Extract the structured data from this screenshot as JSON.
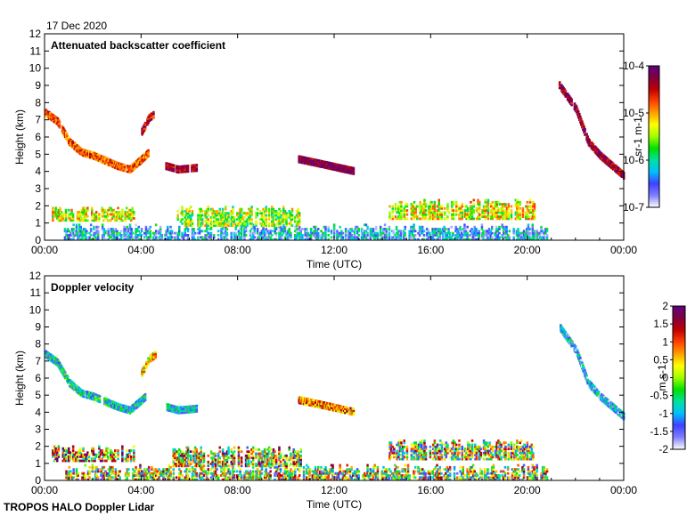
{
  "date_label": "17 Dec 2020",
  "footer": "TROPOS HALO Doppler Lidar",
  "chart_data": [
    {
      "type": "heatmap",
      "title": "Attenuated backscatter coefficient",
      "xlabel": "Time (UTC)",
      "ylabel": "Height (km)",
      "xlim": [
        0,
        24
      ],
      "ylim": [
        0,
        12
      ],
      "x_ticks": [
        0,
        4,
        8,
        12,
        16,
        20,
        24
      ],
      "x_tick_labels": [
        "00:00",
        "04:00",
        "08:00",
        "12:00",
        "16:00",
        "20:00",
        "00:00"
      ],
      "y_ticks": [
        0,
        1,
        2,
        3,
        4,
        5,
        6,
        7,
        8,
        9,
        10,
        11,
        12
      ],
      "y_tick_labels": [
        "0",
        "1",
        "2",
        "3",
        "4",
        "5",
        "6",
        "7",
        "8",
        "9",
        "10",
        "11",
        "12"
      ],
      "colorbar": {
        "scale": "log",
        "range": [
          1e-07,
          0.0001
        ],
        "tick_values": [
          -4,
          -5,
          -6,
          -7
        ],
        "tick_labels": [
          "10-4",
          "10-5",
          "10-6",
          "10-7"
        ],
        "label": "sr-1 m-1",
        "colormap": [
          "#ffffff",
          "#8080ff",
          "#4040ff",
          "#00c0ff",
          "#00e0a0",
          "#00e000",
          "#a0ff00",
          "#ffff00",
          "#ffa000",
          "#ff4000",
          "#c00000",
          "#800040",
          "#600080"
        ]
      },
      "features": [
        {
          "name": "boundary-layer-aerosol",
          "t": [
            0.8,
            20.8
          ],
          "z": [
            0,
            0.9
          ],
          "value": -6.3
        },
        {
          "name": "low-cloud-1",
          "t": [
            0.3,
            3.7
          ],
          "z": [
            1.1,
            2.0
          ],
          "value": -5.3
        },
        {
          "name": "low-cloud-2",
          "t": [
            5.3,
            10.6
          ],
          "z": [
            0.8,
            2.0
          ],
          "value": -5.5
        },
        {
          "name": "low-cloud-3",
          "t": [
            14.2,
            20.3
          ],
          "z": [
            1.2,
            2.4
          ],
          "value": -5.3
        },
        {
          "name": "mid-cloud-layer",
          "t": [
            0.0,
            4.4
          ],
          "points": [
            [
              0.0,
              7.3
            ],
            [
              0.5,
              6.8
            ],
            [
              1.0,
              5.6
            ],
            [
              1.5,
              5.0
            ],
            [
              2.0,
              4.8
            ],
            [
              3.0,
              4.2
            ],
            [
              3.5,
              4.0
            ],
            [
              4.0,
              4.6
            ],
            [
              4.3,
              5.0
            ]
          ],
          "value": -4.8
        },
        {
          "name": "mid-cloud-upper",
          "t": [
            4.0,
            4.6
          ],
          "points": [
            [
              4.0,
              6.2
            ],
            [
              4.3,
              7.0
            ],
            [
              4.6,
              7.3
            ]
          ],
          "value": -4.5
        },
        {
          "name": "mid-cloud-2",
          "t": [
            5.0,
            6.3
          ],
          "points": [
            [
              5.0,
              4.2
            ],
            [
              5.5,
              4.0
            ],
            [
              6.3,
              4.1
            ]
          ],
          "value": -4.3
        },
        {
          "name": "mid-cloud-3",
          "t": [
            10.5,
            12.8
          ],
          "points": [
            [
              10.5,
              4.6
            ],
            [
              11.5,
              4.3
            ],
            [
              12.8,
              3.9
            ]
          ],
          "value": -4.2
        },
        {
          "name": "high-cloud-evening",
          "t": [
            21.3,
            24.0
          ],
          "points": [
            [
              21.3,
              8.9
            ],
            [
              22.0,
              7.5
            ],
            [
              22.5,
              5.6
            ],
            [
              23.0,
              4.8
            ],
            [
              24.0,
              3.6
            ]
          ],
          "value": -4.3
        }
      ]
    },
    {
      "type": "heatmap",
      "title": "Doppler velocity",
      "xlabel": "Time (UTC)",
      "ylabel": "Height (km)",
      "xlim": [
        0,
        24
      ],
      "ylim": [
        0,
        12
      ],
      "x_ticks": [
        0,
        4,
        8,
        12,
        16,
        20,
        24
      ],
      "x_tick_labels": [
        "00:00",
        "04:00",
        "08:00",
        "12:00",
        "16:00",
        "20:00",
        "00:00"
      ],
      "y_ticks": [
        0,
        1,
        2,
        3,
        4,
        5,
        6,
        7,
        8,
        9,
        10,
        11,
        12
      ],
      "y_tick_labels": [
        "0",
        "1",
        "2",
        "3",
        "4",
        "5",
        "6",
        "7",
        "8",
        "9",
        "10",
        "11",
        "12"
      ],
      "colorbar": {
        "scale": "linear",
        "range": [
          -2,
          2
        ],
        "tick_values": [
          2,
          1.5,
          1,
          0.5,
          0,
          -0.5,
          -1,
          -1.5,
          -2
        ],
        "tick_labels": [
          "2",
          "1.5",
          "1",
          "0.5",
          "0",
          "-0.5",
          "-1",
          "-1.5",
          "-2"
        ],
        "label": "m s-1",
        "colormap": [
          "#ffffff",
          "#8080ff",
          "#4040ff",
          "#00c0ff",
          "#00e0a0",
          "#00e000",
          "#a0ff00",
          "#ffff00",
          "#ffa000",
          "#ff4000",
          "#c00000",
          "#800040",
          "#600080"
        ]
      },
      "features": [
        {
          "name": "boundary-layer",
          "t": [
            0.8,
            20.8
          ],
          "z": [
            0,
            0.9
          ],
          "value": 0.0
        },
        {
          "name": "low-cloud-1",
          "t": [
            0.3,
            3.7
          ],
          "z": [
            1.1,
            2.0
          ],
          "value": 0.5
        },
        {
          "name": "low-cloud-2",
          "t": [
            5.3,
            10.6
          ],
          "z": [
            0.8,
            2.0
          ],
          "value": 0.2
        },
        {
          "name": "low-cloud-3",
          "t": [
            14.2,
            20.3
          ],
          "z": [
            1.2,
            2.4
          ],
          "value": 0.0
        },
        {
          "name": "mid-cloud-layer",
          "t": [
            0.0,
            4.4
          ],
          "points": [
            [
              0.0,
              7.3
            ],
            [
              0.5,
              6.8
            ],
            [
              1.0,
              5.6
            ],
            [
              1.5,
              5.0
            ],
            [
              2.0,
              4.8
            ],
            [
              3.0,
              4.2
            ],
            [
              3.5,
              4.0
            ],
            [
              4.0,
              4.6
            ],
            [
              4.3,
              5.0
            ]
          ],
          "value": -0.8
        },
        {
          "name": "mid-cloud-upper",
          "t": [
            4.0,
            4.6
          ],
          "points": [
            [
              4.0,
              6.2
            ],
            [
              4.3,
              7.0
            ],
            [
              4.6,
              7.3
            ]
          ],
          "value": 0.4
        },
        {
          "name": "mid-cloud-2",
          "t": [
            5.0,
            6.3
          ],
          "points": [
            [
              5.0,
              4.2
            ],
            [
              5.5,
              4.0
            ],
            [
              6.3,
              4.1
            ]
          ],
          "value": -1.0
        },
        {
          "name": "mid-cloud-3",
          "t": [
            10.5,
            12.8
          ],
          "points": [
            [
              10.5,
              4.6
            ],
            [
              11.5,
              4.3
            ],
            [
              12.8,
              3.9
            ]
          ],
          "value": 0.8
        },
        {
          "name": "high-cloud-evening",
          "t": [
            21.3,
            24.0
          ],
          "points": [
            [
              21.3,
              8.9
            ],
            [
              22.0,
              7.5
            ],
            [
              22.5,
              5.6
            ],
            [
              23.0,
              4.8
            ],
            [
              24.0,
              3.6
            ]
          ],
          "value": -1.2
        }
      ]
    }
  ]
}
